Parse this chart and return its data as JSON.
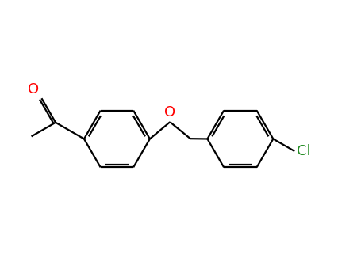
{
  "bg_color": "#ffffff",
  "bond_color": "#000000",
  "O_color": "#ff0000",
  "Cl_color": "#228b22",
  "font_size": 13,
  "lw": 1.6,
  "figsize": [
    4.55,
    3.5
  ],
  "dpi": 100,
  "lcx": 1.55,
  "lcy": 0.52,
  "lr": 0.44,
  "rcx": 3.2,
  "rcy": 0.52,
  "rr": 0.44,
  "xlim": [
    0.0,
    4.8
  ],
  "ylim": [
    -0.25,
    1.3
  ]
}
